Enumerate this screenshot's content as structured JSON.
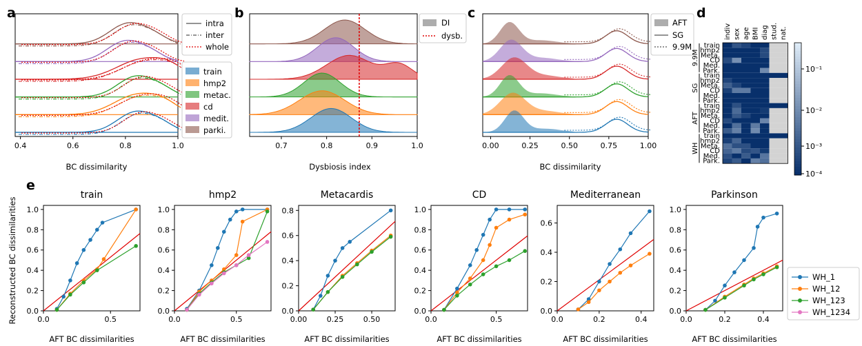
{
  "colors": {
    "train": "#1f77b4",
    "hmp2": "#ff7f0e",
    "metac": "#2ca02c",
    "cd": "#d62728",
    "medit": "#9467bd",
    "parki": "#8c564b",
    "pink": "#e377c2",
    "ref": "#e00000",
    "heatfill": "#d3d3d3"
  },
  "labels": {
    "a": "a",
    "b": "b",
    "c": "c",
    "d": "d",
    "e": "e",
    "a_xlabel": "BC dissimilarity",
    "b_xlabel": "Dysbiosis index",
    "c_xlabel": "BC dissimilarity",
    "e_ylabel": "Reconstructed BC dissimilarities",
    "e_xlabel": "AFT BC dissimilarities"
  },
  "legend_a_lines": [
    "intra",
    "inter",
    "whole"
  ],
  "legend_cohorts": [
    "train",
    "hmp2",
    "metac.",
    "cd",
    "medit.",
    "parki."
  ],
  "legend_b": [
    "DI",
    "dysb."
  ],
  "legend_c": [
    "AFT",
    "SG",
    "9.9M"
  ],
  "legend_e": [
    "WH_1",
    "WH_12",
    "WH_123",
    "WH_1234"
  ],
  "chart_data": [
    {
      "panel": "a",
      "type": "area",
      "xlabel": "BC dissimilarity",
      "xlim": [
        0.38,
        1.0
      ],
      "xticks": [
        "0.4",
        "0.6",
        "0.8",
        "1.0"
      ],
      "series": [
        {
          "name": "train",
          "peak": 0.84,
          "width": 0.07
        },
        {
          "name": "hmp2",
          "peak": 0.85,
          "width": 0.09
        },
        {
          "name": "metac.",
          "peak": 0.84,
          "width": 0.07
        },
        {
          "name": "cd",
          "peak": 0.87,
          "width": 0.1
        },
        {
          "name": "medit.",
          "peak": 0.8,
          "width": 0.07
        },
        {
          "name": "parki.",
          "peak": 0.81,
          "width": 0.07
        }
      ]
    },
    {
      "panel": "b",
      "type": "area",
      "xlabel": "Dysbiosis index",
      "xlim": [
        0.63,
        1.0
      ],
      "xticks": [
        "0.7",
        "0.8",
        "0.9",
        "1.0"
      ],
      "threshold": 0.872,
      "series": [
        {
          "name": "train",
          "peak": 0.81,
          "width": 0.045
        },
        {
          "name": "hmp2",
          "peak": 0.79,
          "width": 0.05
        },
        {
          "name": "metac.",
          "peak": 0.79,
          "width": 0.04
        },
        {
          "name": "cd",
          "peak": 0.85,
          "width": 0.05
        },
        {
          "name": "medit.",
          "peak": 0.82,
          "width": 0.04
        },
        {
          "name": "parki.",
          "peak": 0.84,
          "width": 0.045
        }
      ]
    },
    {
      "panel": "c",
      "type": "area",
      "xlabel": "BC dissimilarity",
      "xlim": [
        -0.05,
        1.0
      ],
      "xticks": [
        "0.00",
        "0.25",
        "0.50",
        "0.75",
        "1.00"
      ],
      "series": [
        {
          "name": "train",
          "peak": 0.15,
          "width": 0.06
        },
        {
          "name": "hmp2",
          "peak": 0.14,
          "width": 0.08
        },
        {
          "name": "metac.",
          "peak": 0.12,
          "width": 0.06
        },
        {
          "name": "cd",
          "peak": 0.15,
          "width": 0.08
        },
        {
          "name": "medit.",
          "peak": 0.13,
          "width": 0.07
        },
        {
          "name": "parki.",
          "peak": 0.12,
          "width": 0.06
        }
      ]
    },
    {
      "panel": "d",
      "type": "heatmap",
      "columns": [
        "indiv",
        "sex",
        "age",
        "BMI",
        "diag",
        "stud.",
        "nat."
      ],
      "groups": [
        "9.9M",
        "SG",
        "AFT",
        "WH"
      ],
      "rows": [
        "train",
        "hmp2",
        "Meta.",
        "CD",
        "Med.",
        "Park."
      ],
      "colorbar_ticks": [
        "10⁻¹",
        "10⁻²",
        "10⁻³",
        "10⁻⁴"
      ],
      "log10_values": [
        [
          -4,
          -3.3,
          -3.6,
          -4,
          -4,
          null,
          null
        ],
        [
          -4,
          -4,
          -4,
          -4,
          -3.5,
          null,
          null
        ],
        [
          -4,
          -4,
          -4,
          -4,
          -3.5,
          null,
          null
        ],
        [
          -3.5,
          -2.2,
          -4,
          -4,
          -4,
          null,
          null
        ],
        [
          -4,
          -4,
          -4,
          -4,
          -4,
          null,
          null
        ],
        [
          -4,
          -4,
          -4,
          -4,
          -2.3,
          null,
          null
        ],
        [
          -4,
          -4,
          -4,
          -4,
          -4,
          -4,
          -4
        ],
        [
          -3.6,
          -4,
          -4,
          -4,
          -4,
          null,
          null
        ],
        [
          -3.1,
          -3.6,
          -4,
          -4,
          -4,
          null,
          null
        ],
        [
          -3.7,
          -2.6,
          -2.6,
          -4,
          -4,
          null,
          null
        ],
        [
          -4,
          -4,
          -4,
          -4,
          -4,
          null,
          null
        ],
        [
          -4,
          -4,
          -4,
          -4,
          -4,
          null,
          null
        ],
        [
          -4,
          -3.4,
          -4,
          -4,
          -4,
          -4,
          -4
        ],
        [
          -4,
          -2.9,
          -4,
          -4,
          -3.8,
          null,
          null
        ],
        [
          -4,
          -3.2,
          -3.6,
          -4,
          -4,
          null,
          null
        ],
        [
          -3.5,
          -4,
          -4,
          -4,
          -2.4,
          null,
          null
        ],
        [
          -4,
          -2.8,
          -4,
          -2.6,
          -4,
          null,
          null
        ],
        [
          -3.2,
          -2.5,
          -4,
          -2.3,
          -4,
          null,
          null
        ],
        [
          -4,
          -4,
          -4,
          -4,
          -4,
          -4,
          -4
        ],
        [
          -3.7,
          -3.0,
          -4,
          -4,
          -4,
          null,
          null
        ],
        [
          -2.8,
          -3.4,
          -3.4,
          -4,
          -4,
          null,
          null
        ],
        [
          -3.0,
          -2.6,
          -3.5,
          -3.3,
          -3.8,
          null,
          null
        ],
        [
          -3.4,
          -4,
          -3.2,
          -4,
          -2.7,
          null,
          null
        ],
        [
          -3.6,
          -3.2,
          -4,
          -2.5,
          -2.8,
          null,
          null
        ]
      ]
    },
    {
      "panel": "e",
      "type": "scatter",
      "xlabel": "AFT BC dissimilarities",
      "ylabel": "Reconstructed BC dissimilarities",
      "subplots": [
        {
          "title": "train",
          "xlim": [
            0,
            0.72
          ],
          "ylim": [
            0,
            1.04
          ],
          "xticks": [
            0,
            0.5
          ],
          "yticks": [
            0,
            0.2,
            0.4,
            0.6,
            0.8,
            1.0
          ],
          "ref_slope": 1.06,
          "series": [
            {
              "name": "WH_1",
              "x": [
                0.1,
                0.15,
                0.2,
                0.25,
                0.3,
                0.35,
                0.4,
                0.44,
                0.69
              ],
              "y": [
                0.02,
                0.14,
                0.3,
                0.47,
                0.6,
                0.7,
                0.8,
                0.87,
                1.0
              ]
            },
            {
              "name": "WH_12",
              "x": [
                0.1,
                0.2,
                0.3,
                0.4,
                0.45,
                0.69
              ],
              "y": [
                0.01,
                0.17,
                0.3,
                0.41,
                0.51,
                1.0
              ]
            },
            {
              "name": "WH_123",
              "x": [
                0.1,
                0.2,
                0.3,
                0.4,
                0.69
              ],
              "y": [
                0.01,
                0.16,
                0.28,
                0.4,
                0.64
              ]
            }
          ]
        },
        {
          "title": "hmp2",
          "xlim": [
            0,
            0.78
          ],
          "ylim": [
            0,
            1.04
          ],
          "xticks": [
            0,
            0.5
          ],
          "yticks": [
            0,
            0.2,
            0.4,
            0.6,
            0.8,
            1.0
          ],
          "ref_slope": 1.0,
          "series": [
            {
              "name": "WH_1",
              "x": [
                0.1,
                0.2,
                0.3,
                0.35,
                0.4,
                0.45,
                0.5,
                0.55,
                0.75
              ],
              "y": [
                0.02,
                0.2,
                0.45,
                0.62,
                0.78,
                0.9,
                0.98,
                1.0,
                1.0
              ]
            },
            {
              "name": "WH_12",
              "x": [
                0.1,
                0.2,
                0.3,
                0.4,
                0.5,
                0.55,
                0.75
              ],
              "y": [
                0.01,
                0.19,
                0.3,
                0.41,
                0.55,
                0.88,
                1.0
              ]
            },
            {
              "name": "WH_123",
              "x": [
                0.1,
                0.2,
                0.3,
                0.4,
                0.5,
                0.6,
                0.75
              ],
              "y": [
                0.01,
                0.17,
                0.28,
                0.38,
                0.45,
                0.52,
                0.98
              ]
            },
            {
              "name": "WH_1234",
              "x": [
                0.1,
                0.2,
                0.3,
                0.4,
                0.5,
                0.6,
                0.75
              ],
              "y": [
                0.01,
                0.16,
                0.27,
                0.37,
                0.45,
                0.55,
                0.68
              ]
            }
          ]
        },
        {
          "title": "Metacardis",
          "xlim": [
            0,
            0.66
          ],
          "ylim": [
            0,
            0.84
          ],
          "xticks": [
            0,
            0.25,
            0.5
          ],
          "yticks": [
            0,
            0.2,
            0.4,
            0.6,
            0.8
          ],
          "ref_slope": 1.08,
          "series": [
            {
              "name": "WH_1",
              "x": [
                0.1,
                0.15,
                0.2,
                0.25,
                0.3,
                0.35,
                0.63
              ],
              "y": [
                0.01,
                0.12,
                0.28,
                0.4,
                0.5,
                0.55,
                0.8
              ]
            },
            {
              "name": "WH_12",
              "x": [
                0.1,
                0.2,
                0.3,
                0.4,
                0.5,
                0.63
              ],
              "y": [
                0.01,
                0.15,
                0.28,
                0.38,
                0.48,
                0.6
              ]
            },
            {
              "name": "WH_123",
              "x": [
                0.1,
                0.2,
                0.3,
                0.4,
                0.5,
                0.63
              ],
              "y": [
                0.01,
                0.15,
                0.27,
                0.37,
                0.47,
                0.59
              ]
            }
          ]
        },
        {
          "title": "CD",
          "xlim": [
            0,
            0.74
          ],
          "ylim": [
            0,
            1.04
          ],
          "xticks": [
            0,
            0.5
          ],
          "yticks": [
            0,
            0.2,
            0.4,
            0.6,
            0.8,
            1.0
          ],
          "ref_slope": 1.0,
          "series": [
            {
              "name": "WH_1",
              "x": [
                0.1,
                0.2,
                0.3,
                0.35,
                0.4,
                0.45,
                0.5,
                0.6,
                0.72
              ],
              "y": [
                0.01,
                0.22,
                0.45,
                0.6,
                0.75,
                0.9,
                1.0,
                1.0,
                1.0
              ]
            },
            {
              "name": "WH_12",
              "x": [
                0.1,
                0.2,
                0.3,
                0.4,
                0.45,
                0.5,
                0.6,
                0.72
              ],
              "y": [
                0.01,
                0.18,
                0.32,
                0.5,
                0.65,
                0.82,
                0.9,
                0.95
              ]
            },
            {
              "name": "WH_123",
              "x": [
                0.1,
                0.2,
                0.3,
                0.4,
                0.5,
                0.6,
                0.72
              ],
              "y": [
                0.01,
                0.15,
                0.26,
                0.36,
                0.44,
                0.5,
                0.59
              ]
            }
          ]
        },
        {
          "title": "Mediterranean",
          "xlim": [
            0,
            0.46
          ],
          "ylim": [
            0,
            0.72
          ],
          "xticks": [
            0,
            0.2,
            0.4
          ],
          "yticks": [
            0,
            0.2,
            0.4,
            0.6
          ],
          "ref_slope": 1.06,
          "series": [
            {
              "name": "WH_1",
              "x": [
                0.1,
                0.15,
                0.2,
                0.25,
                0.3,
                0.35,
                0.44
              ],
              "y": [
                0.01,
                0.08,
                0.2,
                0.32,
                0.42,
                0.53,
                0.68
              ]
            },
            {
              "name": "WH_12",
              "x": [
                0.1,
                0.15,
                0.2,
                0.25,
                0.3,
                0.35,
                0.44
              ],
              "y": [
                0.01,
                0.06,
                0.14,
                0.2,
                0.26,
                0.31,
                0.39
              ]
            }
          ]
        },
        {
          "title": "Parkinson",
          "xlim": [
            0,
            0.5
          ],
          "ylim": [
            0,
            1.04
          ],
          "xticks": [
            0,
            0.2,
            0.4
          ],
          "yticks": [
            0,
            0.2,
            0.4,
            0.6,
            0.8,
            1.0
          ],
          "ref_slope": 1.0,
          "series": [
            {
              "name": "WH_1",
              "x": [
                0.1,
                0.15,
                0.2,
                0.25,
                0.3,
                0.35,
                0.37,
                0.4,
                0.47
              ],
              "y": [
                0.01,
                0.1,
                0.25,
                0.38,
                0.5,
                0.62,
                0.83,
                0.92,
                0.96
              ]
            },
            {
              "name": "WH_12",
              "x": [
                0.1,
                0.2,
                0.3,
                0.35,
                0.4,
                0.47
              ],
              "y": [
                0.01,
                0.14,
                0.26,
                0.32,
                0.37,
                0.44
              ]
            },
            {
              "name": "WH_123",
              "x": [
                0.1,
                0.2,
                0.3,
                0.35,
                0.4,
                0.47
              ],
              "y": [
                0.01,
                0.13,
                0.25,
                0.31,
                0.36,
                0.43
              ]
            }
          ]
        }
      ]
    }
  ]
}
